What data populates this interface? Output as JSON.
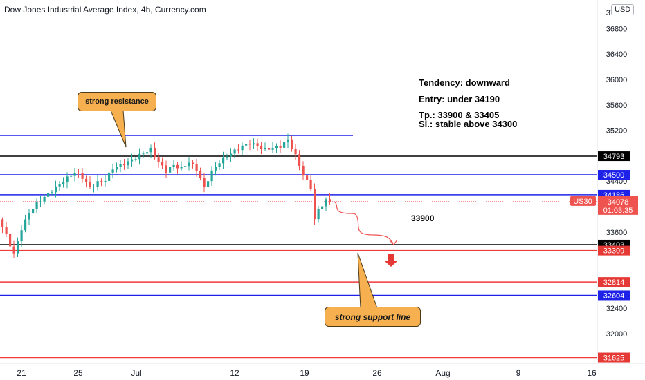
{
  "header": {
    "title": "Dow Jones Industrial Average Index, 4h, Currency.com",
    "currency_label": "USD"
  },
  "annotations": {
    "tendency": "Tendency: downward",
    "entry": "Entry: under 34190",
    "tp": "Tp.: 33900 & 33405",
    "sl": "Sl.: stable above 34300",
    "target_label": "33900",
    "resistance_callout": "strong resistance",
    "support_callout": "strong support line"
  },
  "colors": {
    "blue_line": "#1e22e8",
    "black_line": "#000000",
    "red_line": "#f23a3a",
    "up_candle": "#26a69a",
    "down_candle": "#ef5350",
    "current_price": "#ef5350",
    "callout_fill": "#f6b04f"
  },
  "chart_data": {
    "type": "candlestick",
    "symbol": "US30",
    "y_axis_ticks": [
      36800,
      36400,
      36000,
      35600,
      35200,
      34400,
      33600,
      32400,
      32000
    ],
    "y_axis_partial_top": "37200",
    "ylim": [
      31620,
      37250
    ],
    "x_axis_ticks": [
      "21",
      "25",
      "Jul",
      "12",
      "19",
      "26",
      "Aug",
      "9",
      "16"
    ],
    "levels": [
      {
        "price": 35120,
        "color": "blue",
        "labeled": false
      },
      {
        "price": 34793,
        "color": "black",
        "labeled": true
      },
      {
        "price": 34500,
        "color": "blue",
        "labeled": true
      },
      {
        "price": 34186,
        "color": "blue",
        "labeled": true
      },
      {
        "price": 33403,
        "color": "black",
        "labeled": true
      },
      {
        "price": 33309,
        "color": "red",
        "labeled": true
      },
      {
        "price": 32814,
        "color": "red",
        "labeled": true
      },
      {
        "price": 32604,
        "color": "blue",
        "labeled": true
      },
      {
        "price": 31625,
        "color": "red",
        "labeled": true
      }
    ],
    "current_price": {
      "value": "34078",
      "countdown": "01:03:35",
      "symbol": "US30",
      "numeric": 34078
    },
    "price_path": [
      [
        0,
        33800
      ],
      [
        2,
        33550
      ],
      [
        4,
        33250
      ],
      [
        6,
        33650
      ],
      [
        8,
        33900
      ],
      [
        10,
        34050
      ],
      [
        14,
        34250
      ],
      [
        18,
        34450
      ],
      [
        20,
        34540
      ],
      [
        22,
        34460
      ],
      [
        24,
        34300
      ],
      [
        26,
        34380
      ],
      [
        28,
        34420
      ],
      [
        30,
        34600
      ],
      [
        34,
        34700
      ],
      [
        38,
        34840
      ],
      [
        40,
        34900
      ],
      [
        42,
        34700
      ],
      [
        44,
        34560
      ],
      [
        46,
        34650
      ],
      [
        48,
        34600
      ],
      [
        50,
        34700
      ],
      [
        52,
        34580
      ],
      [
        54,
        34300
      ],
      [
        56,
        34550
      ],
      [
        58,
        34700
      ],
      [
        60,
        34800
      ],
      [
        64,
        34950
      ],
      [
        66,
        35000
      ],
      [
        70,
        34900
      ],
      [
        74,
        34950
      ],
      [
        76,
        35050
      ],
      [
        78,
        34800
      ],
      [
        80,
        34500
      ],
      [
        82,
        34300
      ],
      [
        83,
        33800
      ],
      [
        84,
        33950
      ],
      [
        85,
        34030
      ],
      [
        86,
        34100
      ],
      [
        87,
        34078
      ]
    ]
  }
}
